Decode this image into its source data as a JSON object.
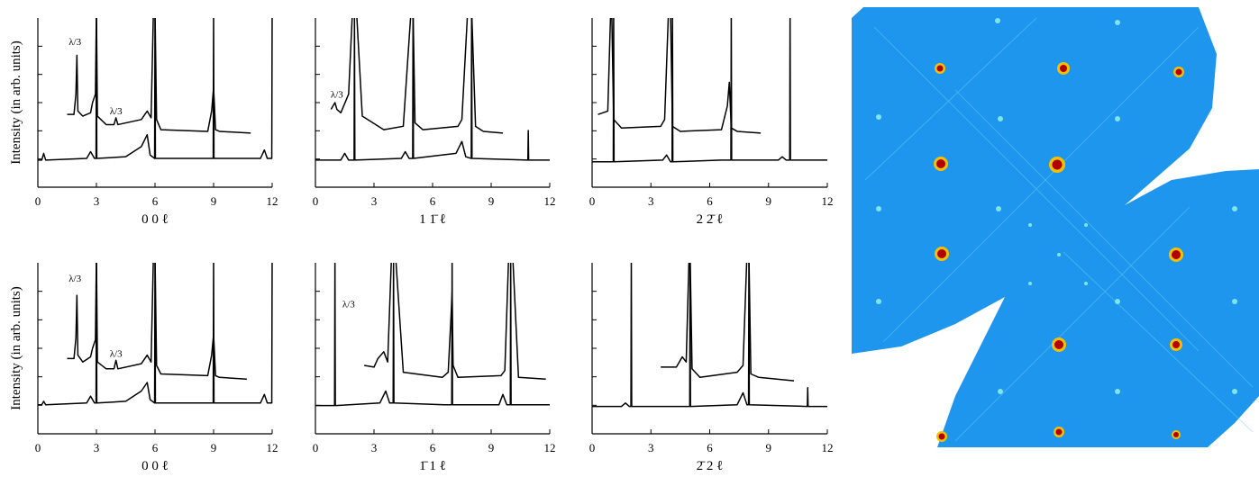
{
  "chart_data": [
    {
      "type": "line",
      "xlabel": "0 0 ℓ",
      "ylabel": "Intensity (in arb. units)",
      "xlim": [
        0,
        12
      ],
      "ylim": [
        0,
        10
      ],
      "xticks": [
        0,
        3,
        6,
        9,
        12
      ],
      "series": [
        {
          "color": "#000000",
          "x": [
            0,
            0.2,
            0.3,
            0.4,
            2.5,
            2.7,
            2.9,
            2.98,
            3,
            3.02,
            4.5,
            5.3,
            5.6,
            5.75,
            5.98,
            6,
            6.02,
            8.98,
            9,
            9.02,
            11.4,
            11.6,
            11.75,
            11.98,
            12
          ],
          "values": [
            1.6,
            1.6,
            2.0,
            1.6,
            1.7,
            2.1,
            1.7,
            1.7,
            10.5,
            1.7,
            1.8,
            2.4,
            3.1,
            1.9,
            1.7,
            10.5,
            1.7,
            1.7,
            10.5,
            1.7,
            1.7,
            2.2,
            1.7,
            1.7,
            10.5
          ]
        },
        {
          "color": "#000000",
          "x": [
            1.5,
            1.85,
            1.95,
            2,
            2.05,
            2.3,
            2.7,
            2.8,
            2.95,
            3,
            3.05,
            3.5,
            3.9,
            4,
            4.1,
            5.3,
            5.6,
            5.8,
            5.92,
            6,
            6.08,
            6.3,
            8.7,
            8.9,
            9,
            9.1,
            9.3,
            10.9
          ],
          "values": [
            4.3,
            4.3,
            5.5,
            7.8,
            4.5,
            4.2,
            4.4,
            5.0,
            5.5,
            10.5,
            4.2,
            3.7,
            3.7,
            4.1,
            3.7,
            4.0,
            4.5,
            4.1,
            10.5,
            10.5,
            4.0,
            3.4,
            3.3,
            4.5,
            5.9,
            3.4,
            3.3,
            3.2
          ]
        }
      ],
      "annotations": [
        {
          "text": "λ/3",
          "x": 1.9,
          "y": 8.4
        },
        {
          "text": "λ/3",
          "x": 4.0,
          "y": 4.3
        }
      ]
    },
    {
      "type": "line",
      "xlabel": "1 1̄ ℓ",
      "xlim": [
        0,
        12
      ],
      "ylim": [
        0,
        10
      ],
      "xticks": [
        0,
        3,
        6,
        9,
        12
      ],
      "series": [
        {
          "color": "#000000",
          "x": [
            0,
            1.3,
            1.5,
            1.7,
            1.98,
            2,
            2.02,
            4.4,
            4.6,
            4.8,
            4.98,
            5,
            5.02,
            7.2,
            7.5,
            7.7,
            7.98,
            8,
            8.02,
            10.88,
            10.9,
            10.92,
            12
          ],
          "values": [
            1.6,
            1.6,
            2.0,
            1.6,
            1.6,
            10.5,
            1.6,
            1.7,
            2.1,
            1.7,
            1.7,
            10.5,
            1.7,
            2.0,
            2.7,
            1.8,
            1.7,
            10.5,
            1.7,
            1.6,
            3.35,
            1.6,
            1.6
          ]
        },
        {
          "color": "#000000",
          "x": [
            0.8,
            0.9,
            1.0,
            1.1,
            1.3,
            1.7,
            1.9,
            2,
            2.1,
            2.4,
            3.5,
            4.5,
            4.9,
            5,
            5.1,
            5.5,
            7.3,
            7.5,
            7.8,
            8,
            8.2,
            8.6,
            9.6
          ],
          "values": [
            4.6,
            4.8,
            5.0,
            4.6,
            4.4,
            5.5,
            10.5,
            10.5,
            10.5,
            4.2,
            3.4,
            3.6,
            10.5,
            10.5,
            3.8,
            3.4,
            3.6,
            4.0,
            10.5,
            10.5,
            3.6,
            3.3,
            3.2
          ]
        }
      ],
      "annotations": [
        {
          "text": "λ/3",
          "x": 1.1,
          "y": 5.3
        }
      ]
    },
    {
      "type": "line",
      "xlabel": "2 2̄ ℓ",
      "xlim": [
        0,
        12
      ],
      "ylim": [
        0,
        10
      ],
      "xticks": [
        0,
        3,
        6,
        9,
        12
      ],
      "series": [
        {
          "color": "#000000",
          "x": [
            0,
            1.08,
            1.1,
            1.12,
            3.6,
            3.8,
            4.0,
            4.08,
            4.1,
            4.12,
            6.6,
            7.08,
            7.1,
            7.12,
            9.5,
            9.7,
            9.9,
            10.08,
            10.1,
            10.12,
            12
          ],
          "values": [
            1.5,
            1.5,
            10.5,
            1.5,
            1.6,
            1.9,
            1.5,
            1.5,
            10.5,
            1.5,
            1.6,
            1.6,
            10.5,
            1.6,
            1.6,
            1.8,
            1.6,
            1.6,
            10.5,
            1.6,
            1.6
          ]
        },
        {
          "color": "#000000",
          "x": [
            0.3,
            0.8,
            0.95,
            1.0,
            1.1,
            1.5,
            3.5,
            3.7,
            3.9,
            4,
            4.1,
            4.5,
            6.6,
            6.9,
            7.0,
            7.1,
            7.4,
            8.6
          ],
          "values": [
            4.3,
            4.5,
            10.5,
            10.5,
            4.0,
            3.5,
            3.6,
            4.0,
            10.5,
            10.5,
            3.6,
            3.3,
            3.4,
            4.8,
            6.2,
            3.5,
            3.3,
            3.2
          ]
        }
      ]
    },
    {
      "type": "line",
      "xlabel": "0 0 ℓ",
      "ylabel": "Intensity (in arb. units)",
      "xlim": [
        0,
        12
      ],
      "ylim": [
        0,
        10
      ],
      "xticks": [
        0,
        3,
        6,
        9,
        12
      ],
      "series": [
        {
          "color": "#000000",
          "x": [
            0,
            0.2,
            0.3,
            0.4,
            2.5,
            2.7,
            2.9,
            2.98,
            3,
            3.02,
            4.5,
            5.3,
            5.6,
            5.75,
            5.98,
            6,
            6.02,
            8.98,
            9,
            9.02,
            11.4,
            11.6,
            11.75,
            11.98,
            12
          ],
          "values": [
            1.7,
            1.7,
            1.9,
            1.7,
            1.8,
            2.2,
            1.8,
            1.8,
            10.5,
            1.8,
            1.9,
            2.5,
            3.0,
            2.0,
            1.8,
            10.5,
            1.8,
            1.8,
            10.5,
            1.8,
            1.8,
            2.3,
            1.8,
            1.8,
            10.5
          ]
        },
        {
          "color": "#000000",
          "x": [
            1.5,
            1.85,
            1.95,
            2,
            2.05,
            2.3,
            2.7,
            2.8,
            2.95,
            3,
            3.05,
            3.5,
            3.9,
            4,
            4.1,
            5.3,
            5.6,
            5.8,
            5.92,
            6,
            6.08,
            6.3,
            8.7,
            8.9,
            9,
            9.1,
            9.3,
            10.7
          ],
          "values": [
            4.4,
            4.4,
            5.6,
            8.1,
            4.6,
            4.2,
            4.5,
            5.0,
            5.5,
            10.5,
            4.2,
            3.8,
            3.8,
            4.3,
            3.8,
            4.1,
            4.6,
            4.2,
            10.5,
            10.5,
            4.0,
            3.5,
            3.4,
            4.6,
            5.8,
            3.4,
            3.3,
            3.2
          ]
        }
      ],
      "annotations": [
        {
          "text": "λ/3",
          "x": 1.9,
          "y": 8.9
        },
        {
          "text": "λ/3",
          "x": 4.0,
          "y": 4.5
        }
      ]
    },
    {
      "type": "line",
      "xlabel": "1̄ 1 ℓ",
      "xlim": [
        0,
        12
      ],
      "ylim": [
        0,
        10
      ],
      "xticks": [
        0,
        3,
        6,
        9,
        12
      ],
      "series": [
        {
          "color": "#000000",
          "x": [
            0,
            0.98,
            1,
            1.02,
            3.3,
            3.6,
            3.8,
            3.98,
            4,
            4.02,
            6.6,
            6.98,
            7,
            7.02,
            9.4,
            9.6,
            9.8,
            9.98,
            10,
            10.02,
            12
          ],
          "values": [
            1.65,
            1.65,
            10.5,
            1.65,
            1.8,
            2.5,
            1.8,
            1.8,
            10.5,
            1.8,
            1.7,
            1.7,
            10.5,
            1.7,
            1.7,
            2.3,
            1.7,
            1.7,
            10.5,
            1.7,
            1.7
          ]
        },
        {
          "color": "#000000",
          "x": [
            2.5,
            3.0,
            3.2,
            3.5,
            3.7,
            3.9,
            4,
            4.1,
            4.5,
            6.5,
            6.8,
            6.95,
            7,
            7.05,
            7.3,
            9.5,
            9.7,
            9.9,
            10,
            10.1,
            10.4,
            11.8
          ],
          "values": [
            4.0,
            3.9,
            4.4,
            4.8,
            4.2,
            10.5,
            10.5,
            10.5,
            3.6,
            3.3,
            3.6,
            7.0,
            8.3,
            4.0,
            3.3,
            3.4,
            3.7,
            10.5,
            10.5,
            10.5,
            3.3,
            3.2
          ]
        }
      ],
      "annotations": [
        {
          "text": "λ/3",
          "x": 1.7,
          "y": 7.4
        }
      ]
    },
    {
      "type": "line",
      "xlabel": "2̄ 2 ℓ",
      "xlim": [
        0,
        12
      ],
      "ylim": [
        0,
        10
      ],
      "xticks": [
        0,
        3,
        6,
        9,
        12
      ],
      "series": [
        {
          "color": "#000000",
          "x": [
            0,
            1.5,
            1.7,
            1.9,
            1.98,
            2,
            2.02,
            4.98,
            5,
            5.02,
            7.4,
            7.7,
            7.9,
            7.98,
            8,
            8.02,
            10.98,
            11,
            11.02,
            12
          ],
          "values": [
            1.6,
            1.6,
            1.8,
            1.6,
            1.6,
            10.5,
            1.6,
            1.6,
            10.5,
            1.6,
            1.7,
            2.4,
            1.7,
            1.7,
            10.5,
            1.7,
            1.6,
            2.7,
            1.6,
            1.6
          ]
        },
        {
          "color": "#000000",
          "x": [
            3.5,
            4.3,
            4.6,
            4.8,
            4.95,
            5,
            5.1,
            5.5,
            7.4,
            7.7,
            7.9,
            8,
            8.1,
            8.5,
            10.3
          ],
          "values": [
            3.9,
            3.9,
            4.5,
            4.2,
            10.5,
            10.5,
            3.8,
            3.3,
            3.6,
            4.0,
            10.5,
            10.5,
            3.5,
            3.3,
            3.1
          ]
        }
      ]
    }
  ]
}
